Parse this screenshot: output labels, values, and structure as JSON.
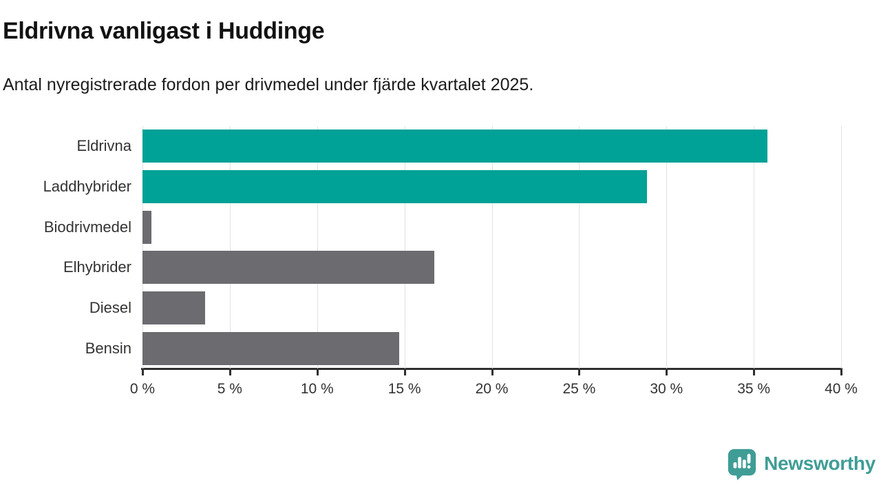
{
  "header": {
    "title": "Eldrivna vanligast i Huddinge",
    "subtitle": "Antal nyregistrerade fordon per drivmedel under fjärde kvartalet 2025."
  },
  "chart_data": {
    "type": "bar",
    "orientation": "horizontal",
    "title": "Eldrivna vanligast i Huddinge",
    "subtitle": "Antal nyregistrerade fordon per drivmedel under fjärde kvartalet 2025.",
    "categories": [
      "Eldrivna",
      "Laddhybrider",
      "Biodrivmedel",
      "Elhybrider",
      "Diesel",
      "Bensin"
    ],
    "values": [
      35.8,
      28.9,
      0.5,
      16.7,
      3.6,
      14.7
    ],
    "unit": "%",
    "xlim": [
      0,
      40
    ],
    "x_tick_step": 5,
    "x_tick_labels": [
      "0 %",
      "5 %",
      "10 %",
      "15 %",
      "20 %",
      "25 %",
      "30 %",
      "35 %",
      "40 %"
    ],
    "grid": true,
    "legend": "none",
    "bar_colors": [
      "#00a196",
      "#00a196",
      "#6b6b70",
      "#6b6b70",
      "#6b6b70",
      "#6b6b70"
    ],
    "highlight_color": "#00a196",
    "default_color": "#6b6b70",
    "gridline_color": "#e2e2e2",
    "axis_color": "#2e2e2e",
    "label_color": "#333333"
  },
  "footer": {
    "brand": "Newsworthy",
    "brand_color": "#3f9d96",
    "logo_icon": "bar-chart-speech-bubble-icon"
  }
}
